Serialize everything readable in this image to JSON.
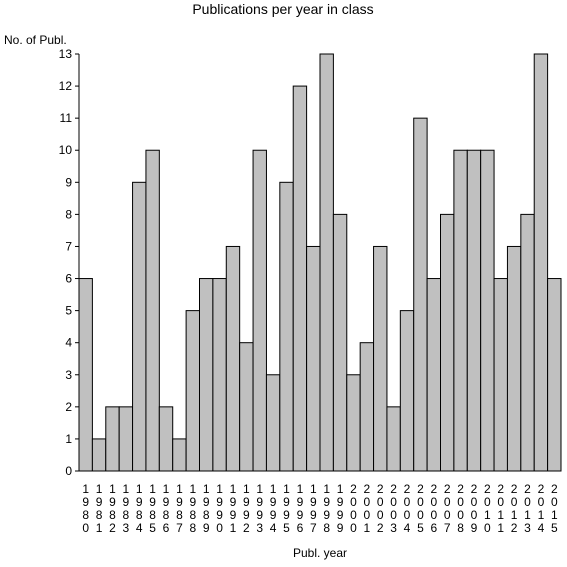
{
  "chart_data": {
    "type": "bar",
    "title": "Publications per year in class",
    "ylabel": "No. of Publ.",
    "xlabel": "Publ. year",
    "ylim": [
      0,
      13
    ],
    "yticks": [
      0,
      1,
      2,
      3,
      4,
      5,
      6,
      7,
      8,
      9,
      10,
      11,
      12,
      13
    ],
    "categories": [
      "1980",
      "1981",
      "1982",
      "1983",
      "1984",
      "1985",
      "1986",
      "1987",
      "1988",
      "1989",
      "1990",
      "1991",
      "1992",
      "1993",
      "1994",
      "1995",
      "1996",
      "1997",
      "1998",
      "1999",
      "2000",
      "2001",
      "2002",
      "2003",
      "2004",
      "2005",
      "2006",
      "2007",
      "2008",
      "2009",
      "2010",
      "2011",
      "2012",
      "2013",
      "2014",
      "2015"
    ],
    "values": [
      6,
      1,
      2,
      2,
      9,
      10,
      2,
      1,
      5,
      6,
      6,
      7,
      4,
      10,
      3,
      9,
      12,
      7,
      13,
      8,
      3,
      4,
      7,
      2,
      5,
      11,
      6,
      8,
      10,
      10,
      10,
      6,
      7,
      8,
      13,
      6
    ],
    "colors": {
      "bar_fill": "#c0c0c0",
      "bar_stroke": "#000000"
    },
    "grid": false
  }
}
